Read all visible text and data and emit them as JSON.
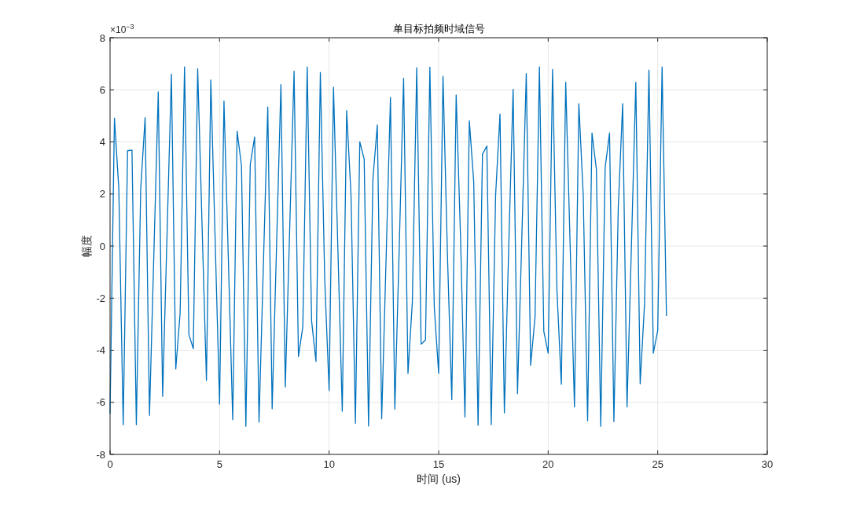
{
  "chart_data": {
    "type": "line",
    "title": "单目标拍频时域信号",
    "xlabel": "时间 (us)",
    "ylabel": "幅度",
    "annotations": [
      "×10$^{−3}$"
    ],
    "x": [
      0,
      0.2,
      0.4,
      0.6,
      0.8,
      1,
      1.2,
      1.4,
      1.6,
      1.8,
      2,
      2.2,
      2.4,
      2.6,
      2.8,
      3,
      3.2,
      3.4,
      3.6,
      3.8,
      4,
      4.2,
      4.4,
      4.6,
      4.8,
      5,
      5.2,
      5.4,
      5.6,
      5.8,
      6,
      6.2,
      6.4,
      6.6,
      6.8,
      7,
      7.2,
      7.4,
      7.6,
      7.8,
      8,
      8.2,
      8.4,
      8.6,
      8.8,
      9,
      9.2,
      9.4,
      9.6,
      9.8,
      10,
      10.2,
      10.4,
      10.6,
      10.8,
      11,
      11.2,
      11.4,
      11.6,
      11.8,
      12,
      12.2,
      12.4,
      12.6,
      12.8,
      13,
      13.2,
      13.4,
      13.6,
      13.8,
      14,
      14.2,
      14.4,
      14.6,
      14.8,
      15,
      15.2,
      15.4,
      15.6,
      15.8,
      16,
      16.2,
      16.4,
      16.6,
      16.8,
      17,
      17.2,
      17.4,
      17.6,
      17.8,
      18,
      18.2,
      18.4,
      18.6,
      18.8,
      19,
      19.2,
      19.4,
      19.6,
      19.8,
      20,
      20.2,
      20.4,
      20.6,
      20.8,
      21,
      21.2,
      21.4,
      21.6,
      21.8,
      22,
      22.2,
      22.4,
      22.6,
      22.8,
      23,
      23.2,
      23.4,
      23.6,
      23.8,
      24,
      24.2,
      24.4,
      24.6,
      24.8,
      25,
      25.2,
      25.4
    ],
    "series": [
      {
        "color": "#0072bd",
        "values": [
          -6.44,
          4.91,
          2.2,
          -6.86,
          3.66,
          3.69,
          -6.86,
          2.2,
          4.93,
          -6.5,
          -0.3,
          5.92,
          -5.77,
          0.4,
          6.6,
          -4.72,
          -2.56,
          6.88,
          -3.4,
          -3.94,
          6.81,
          0.8,
          -5.16,
          6.38,
          0.15,
          -6.07,
          5.57,
          -0.5,
          -6.67,
          4.41,
          3.08,
          -6.92,
          3.13,
          4.19,
          -6.76,
          -0.7,
          5.34,
          -6.25,
          0,
          6.2,
          -5.41,
          0.65,
          6.72,
          -4.24,
          -3.09,
          6.88,
          -2.87,
          -4.43,
          6.67,
          -1.3,
          -5.55,
          6.1,
          -0.1,
          -6.34,
          5.2,
          1.95,
          -6.81,
          4,
          3.34,
          -6.91,
          2.58,
          4.65,
          -6.63,
          -0.5,
          5.71,
          -6.26,
          -0.1,
          6.44,
          -4.89,
          -2.14,
          6.85,
          -3.77,
          -3.61,
          6.87,
          -2.35,
          -4.89,
          6.52,
          -0.3,
          -5.9,
          5.8,
          0.3,
          -6.57,
          4.81,
          2.48,
          -6.88,
          3.53,
          3.84,
          -6.86,
          1.95,
          5.07,
          -6.41,
          0,
          6.02,
          -5.66,
          0.4,
          6.62,
          -4.58,
          -2.72,
          6.88,
          -3.27,
          -4.11,
          6.78,
          -1.7,
          -5.31,
          6.29,
          0.1,
          -6.18,
          5.47,
          1.95,
          -6.71,
          4.34,
          2.95,
          -6.92,
          3,
          4.34,
          -6.74,
          1.5,
          5.47,
          -6.18,
          0,
          6.29,
          -5.29,
          -2.2,
          6.76,
          -4.11,
          -3.24,
          6.88,
          -2.69
        ]
      }
    ],
    "xlim": [
      0,
      30
    ],
    "xticks": [
      0,
      5,
      10,
      15,
      20,
      25,
      30
    ],
    "ylim": [
      -8,
      8
    ],
    "yticks": [
      -8,
      -6,
      -4,
      -2,
      0,
      2,
      4,
      6,
      8
    ],
    "grid": true,
    "line_style": "solid",
    "marker": "none"
  }
}
